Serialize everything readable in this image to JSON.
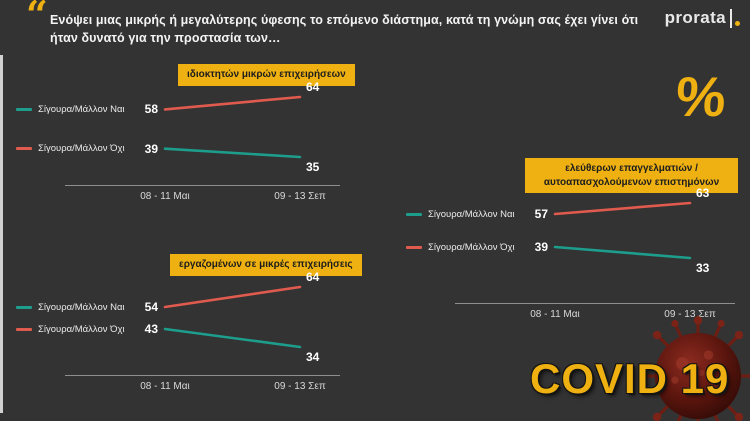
{
  "theme": {
    "background": "#333333",
    "accent_yellow": "#EEB111",
    "series_yes_teal": "#1D9E8C",
    "series_no_red": "#E05A4E",
    "text_white": "#F2F2F2",
    "axis_gray": "#8E8E8E"
  },
  "header": {
    "quote_mark": "“",
    "title_line1": "Ενόψει μιας μικρής ή μεγαλύτερης ύφεσης το επόμενο διάστημα, κατά τη γνώμη σας έχει γίνει ότι",
    "title_line2": "ήταν δυνατό για την προστασία των…",
    "logo_text": "prorata"
  },
  "percent_symbol": "%",
  "covid_badge": "COVID 19",
  "chart_data": [
    {
      "type": "line",
      "title": "ιδιοκτητών μικρών επιχειρήσεων",
      "x": [
        "08 - 11 Μαι",
        "09 - 13 Σεπ"
      ],
      "series": [
        {
          "name": "Σίγουρα/Μάλλον Ναι",
          "color": "#1D9E8C",
          "values": [
            39,
            35
          ]
        },
        {
          "name": "Σίγουρα/Μάλλον Όχι",
          "color": "#E05A4E",
          "values": [
            58,
            64
          ]
        }
      ]
    },
    {
      "type": "line",
      "title": "εργαζομένων σε μικρές επιχειρήσεις",
      "x": [
        "08 - 11 Μαι",
        "09 - 13 Σεπ"
      ],
      "series": [
        {
          "name": "Σίγουρα/Μάλλον Ναι",
          "color": "#1D9E8C",
          "values": [
            43,
            34
          ]
        },
        {
          "name": "Σίγουρα/Μάλλον Όχι",
          "color": "#E05A4E",
          "values": [
            54,
            64
          ]
        }
      ]
    },
    {
      "type": "line",
      "title": "ελεύθερων επαγγελματιών / αυτοαπασχολούμενων επιστημόνων",
      "x": [
        "08 - 11 Μαι",
        "09 - 13 Σεπ"
      ],
      "series": [
        {
          "name": "Σίγουρα/Μάλλον Ναι",
          "color": "#1D9E8C",
          "values": [
            39,
            33
          ]
        },
        {
          "name": "Σίγουρα/Μάλλον Όχι",
          "color": "#E05A4E",
          "values": [
            57,
            63
          ]
        }
      ]
    }
  ]
}
